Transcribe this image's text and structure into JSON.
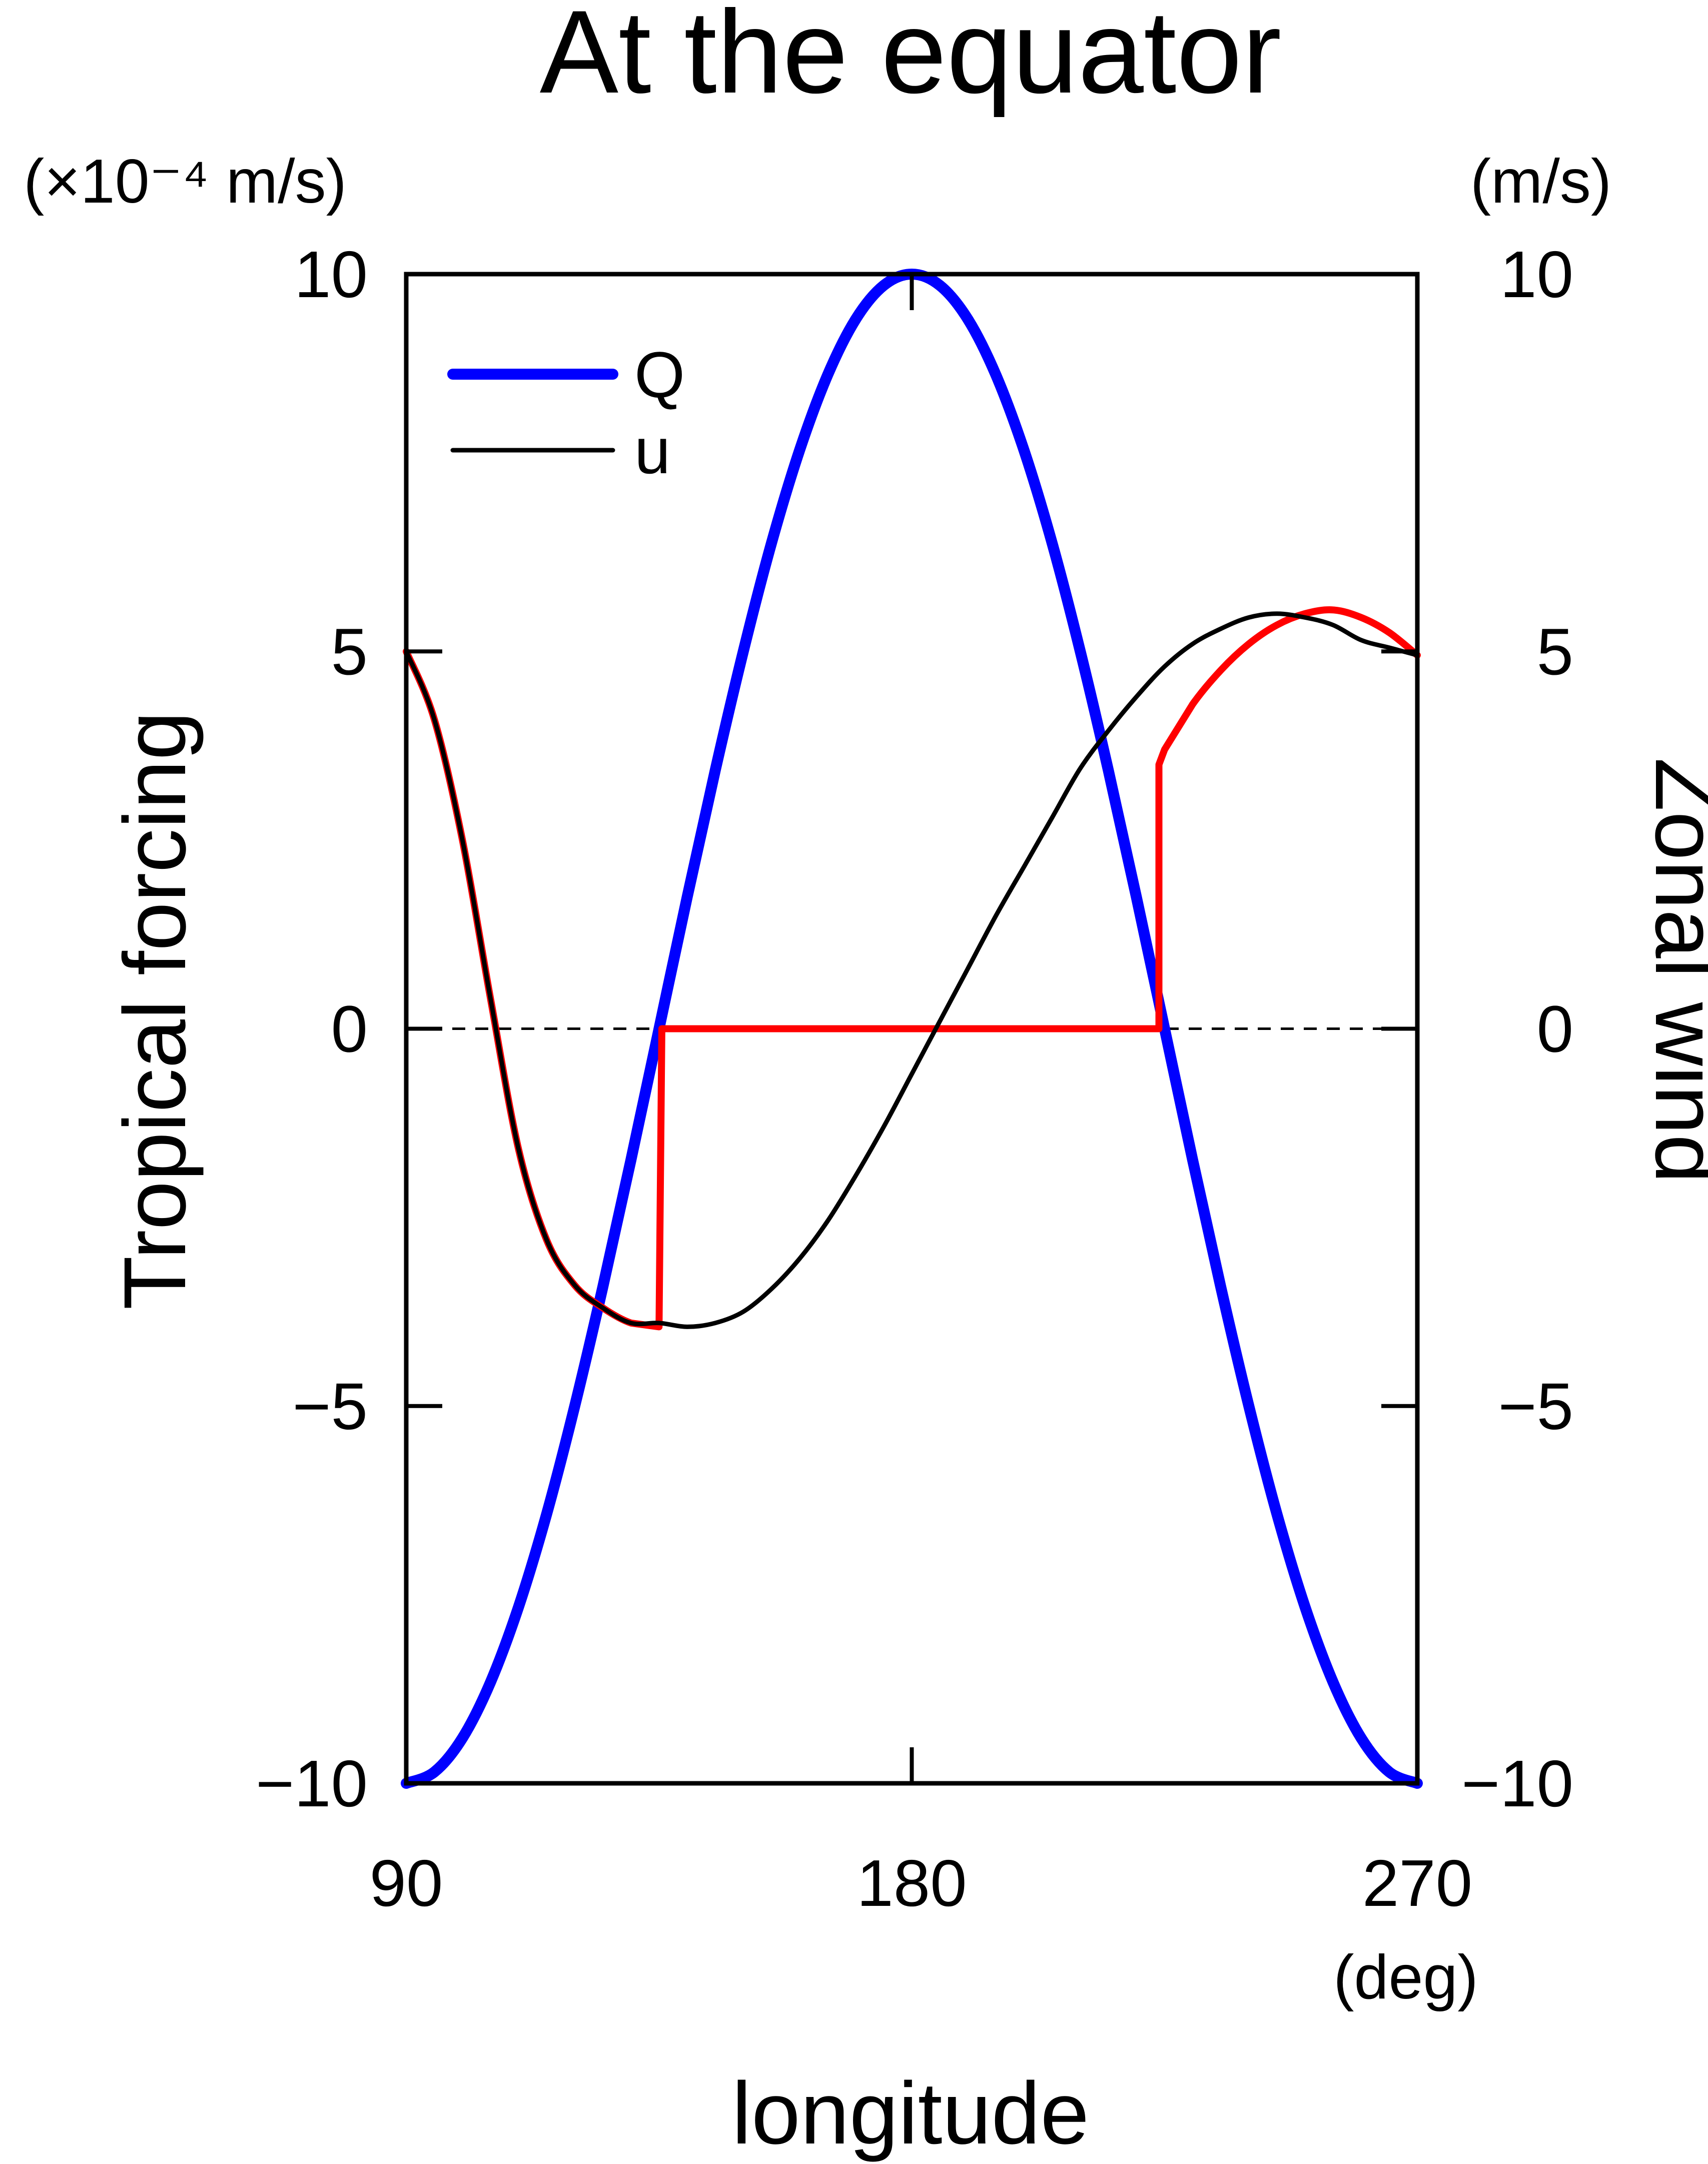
{
  "chart_data": {
    "type": "line",
    "title": "At the equator",
    "xlabel": "longitude",
    "x_unit": "(deg)",
    "ylabel_left": "Tropical forcing",
    "y_unit_left": "(×10⁻⁴ m/s)",
    "ylabel_right": "Zonal wind",
    "y_unit_right": "(m/s)",
    "xlim": [
      90,
      270
    ],
    "ylim": [
      -10,
      10
    ],
    "x_ticks": [
      "90",
      "180",
      "270"
    ],
    "x_tick_values": [
      90,
      180,
      270
    ],
    "y_ticks": [
      "10",
      "5",
      "0",
      "−5",
      "−10"
    ],
    "y_tick_values": [
      10,
      5,
      0,
      -5,
      -10
    ],
    "zero_line": "dashed",
    "grid": false,
    "legend_position": "top-left",
    "legend": [
      {
        "name": "Q",
        "color": "#0000ff"
      },
      {
        "name": "u",
        "color": "#000000"
      }
    ],
    "series": [
      {
        "name": "Q",
        "color": "#0000ff",
        "axis": "left",
        "x": [
          90,
          95,
          100,
          105,
          110,
          115,
          120,
          125,
          130,
          135,
          140,
          145,
          150,
          155,
          160,
          165,
          170,
          175,
          180,
          185,
          190,
          195,
          200,
          205,
          210,
          215,
          220,
          225,
          230,
          235,
          240,
          245,
          250,
          255,
          260,
          265,
          270
        ],
        "y": [
          -10,
          -9.85,
          -9.4,
          -8.66,
          -7.66,
          -6.43,
          -5.0,
          -3.42,
          -1.74,
          0,
          1.74,
          3.42,
          5.0,
          6.43,
          7.66,
          8.66,
          9.4,
          9.85,
          10,
          9.85,
          9.4,
          8.66,
          7.66,
          6.43,
          5.0,
          3.42,
          1.74,
          0,
          -1.74,
          -3.42,
          -5.0,
          -6.43,
          -7.66,
          -8.66,
          -9.4,
          -9.85,
          -10
        ]
      },
      {
        "name": "u",
        "color": "#000000",
        "axis": "right",
        "x": [
          90,
          95,
          100,
          105,
          110,
          115,
          120,
          125,
          130,
          135,
          140,
          145,
          150,
          155,
          160,
          165,
          170,
          175,
          180,
          185,
          190,
          195,
          200,
          205,
          210,
          215,
          220,
          225,
          230,
          235,
          240,
          245,
          250,
          255,
          260,
          265,
          270
        ],
        "y": [
          5.0,
          4.1,
          2.5,
          0.4,
          -1.6,
          -2.8,
          -3.4,
          -3.7,
          -3.9,
          -3.9,
          -3.95,
          -3.9,
          -3.75,
          -3.45,
          -3.05,
          -2.55,
          -1.95,
          -1.3,
          -0.6,
          0.1,
          0.8,
          1.5,
          2.15,
          2.8,
          3.45,
          3.95,
          4.4,
          4.8,
          5.1,
          5.3,
          5.45,
          5.5,
          5.45,
          5.35,
          5.15,
          5.05,
          4.95
        ]
      },
      {
        "name": "",
        "color": "#ff0000",
        "axis": "right",
        "x": [
          90,
          95,
          100,
          105,
          110,
          115,
          120,
          125,
          130,
          135,
          135,
          135.5,
          224,
          224,
          225,
          230,
          235,
          240,
          245,
          250,
          255,
          260,
          265,
          270
        ],
        "y": [
          5.0,
          4.1,
          2.5,
          0.4,
          -1.6,
          -2.8,
          -3.4,
          -3.7,
          -3.9,
          -3.95,
          -3.95,
          0,
          0,
          3.5,
          3.7,
          4.3,
          4.75,
          5.1,
          5.35,
          5.5,
          5.55,
          5.45,
          5.25,
          4.95
        ]
      }
    ]
  }
}
